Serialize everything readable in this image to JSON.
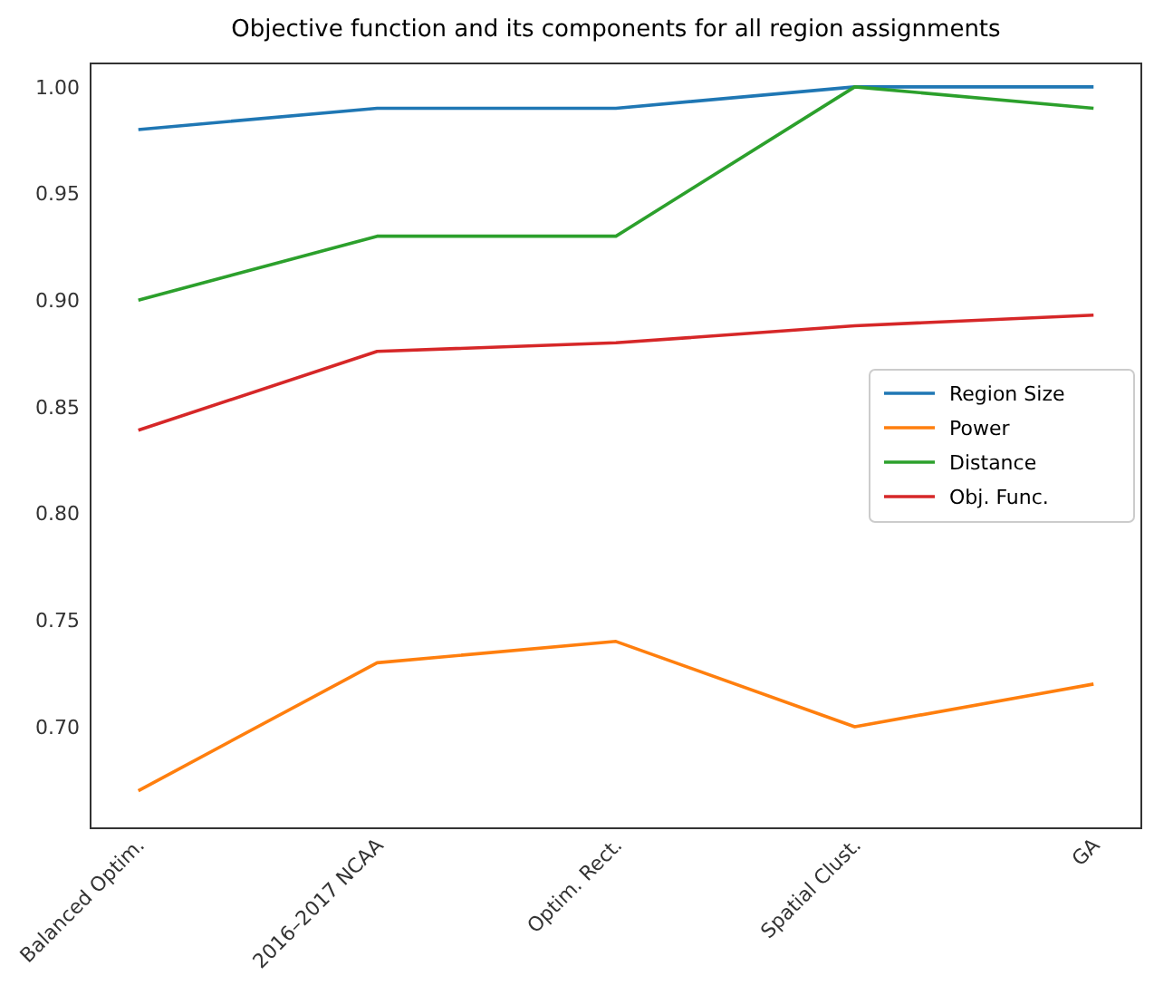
{
  "chart_data": {
    "type": "line",
    "title": "Objective function and its components for all region assignments",
    "categories": [
      "Balanced Optim.",
      "2016–2017 NCAA",
      "Optim. Rect.",
      "Spatial Clust.",
      "GA"
    ],
    "series": [
      {
        "name": "Region Size",
        "color": "#1f77b4",
        "values": [
          0.98,
          0.99,
          0.99,
          1.0,
          1.0
        ]
      },
      {
        "name": "Power",
        "color": "#ff7f0e",
        "values": [
          0.67,
          0.73,
          0.74,
          0.7,
          0.72
        ]
      },
      {
        "name": "Distance",
        "color": "#2ca02c",
        "values": [
          0.9,
          0.93,
          0.93,
          1.0,
          0.99
        ]
      },
      {
        "name": "Obj. Func.",
        "color": "#d62728",
        "values": [
          0.839,
          0.876,
          0.88,
          0.888,
          0.893
        ]
      }
    ],
    "ylim": [
      0.6524,
      1.011
    ],
    "yticks": [
      {
        "value": 0.7,
        "label": "0.70"
      },
      {
        "value": 0.75,
        "label": "0.75"
      },
      {
        "value": 0.8,
        "label": "0.80"
      },
      {
        "value": 0.85,
        "label": "0.85"
      },
      {
        "value": 0.9,
        "label": "0.90"
      },
      {
        "value": 0.95,
        "label": "0.95"
      },
      {
        "value": 1.0,
        "label": "1.00"
      }
    ],
    "grid": false,
    "legend": "right",
    "marker": "none",
    "line_style": "solid"
  }
}
